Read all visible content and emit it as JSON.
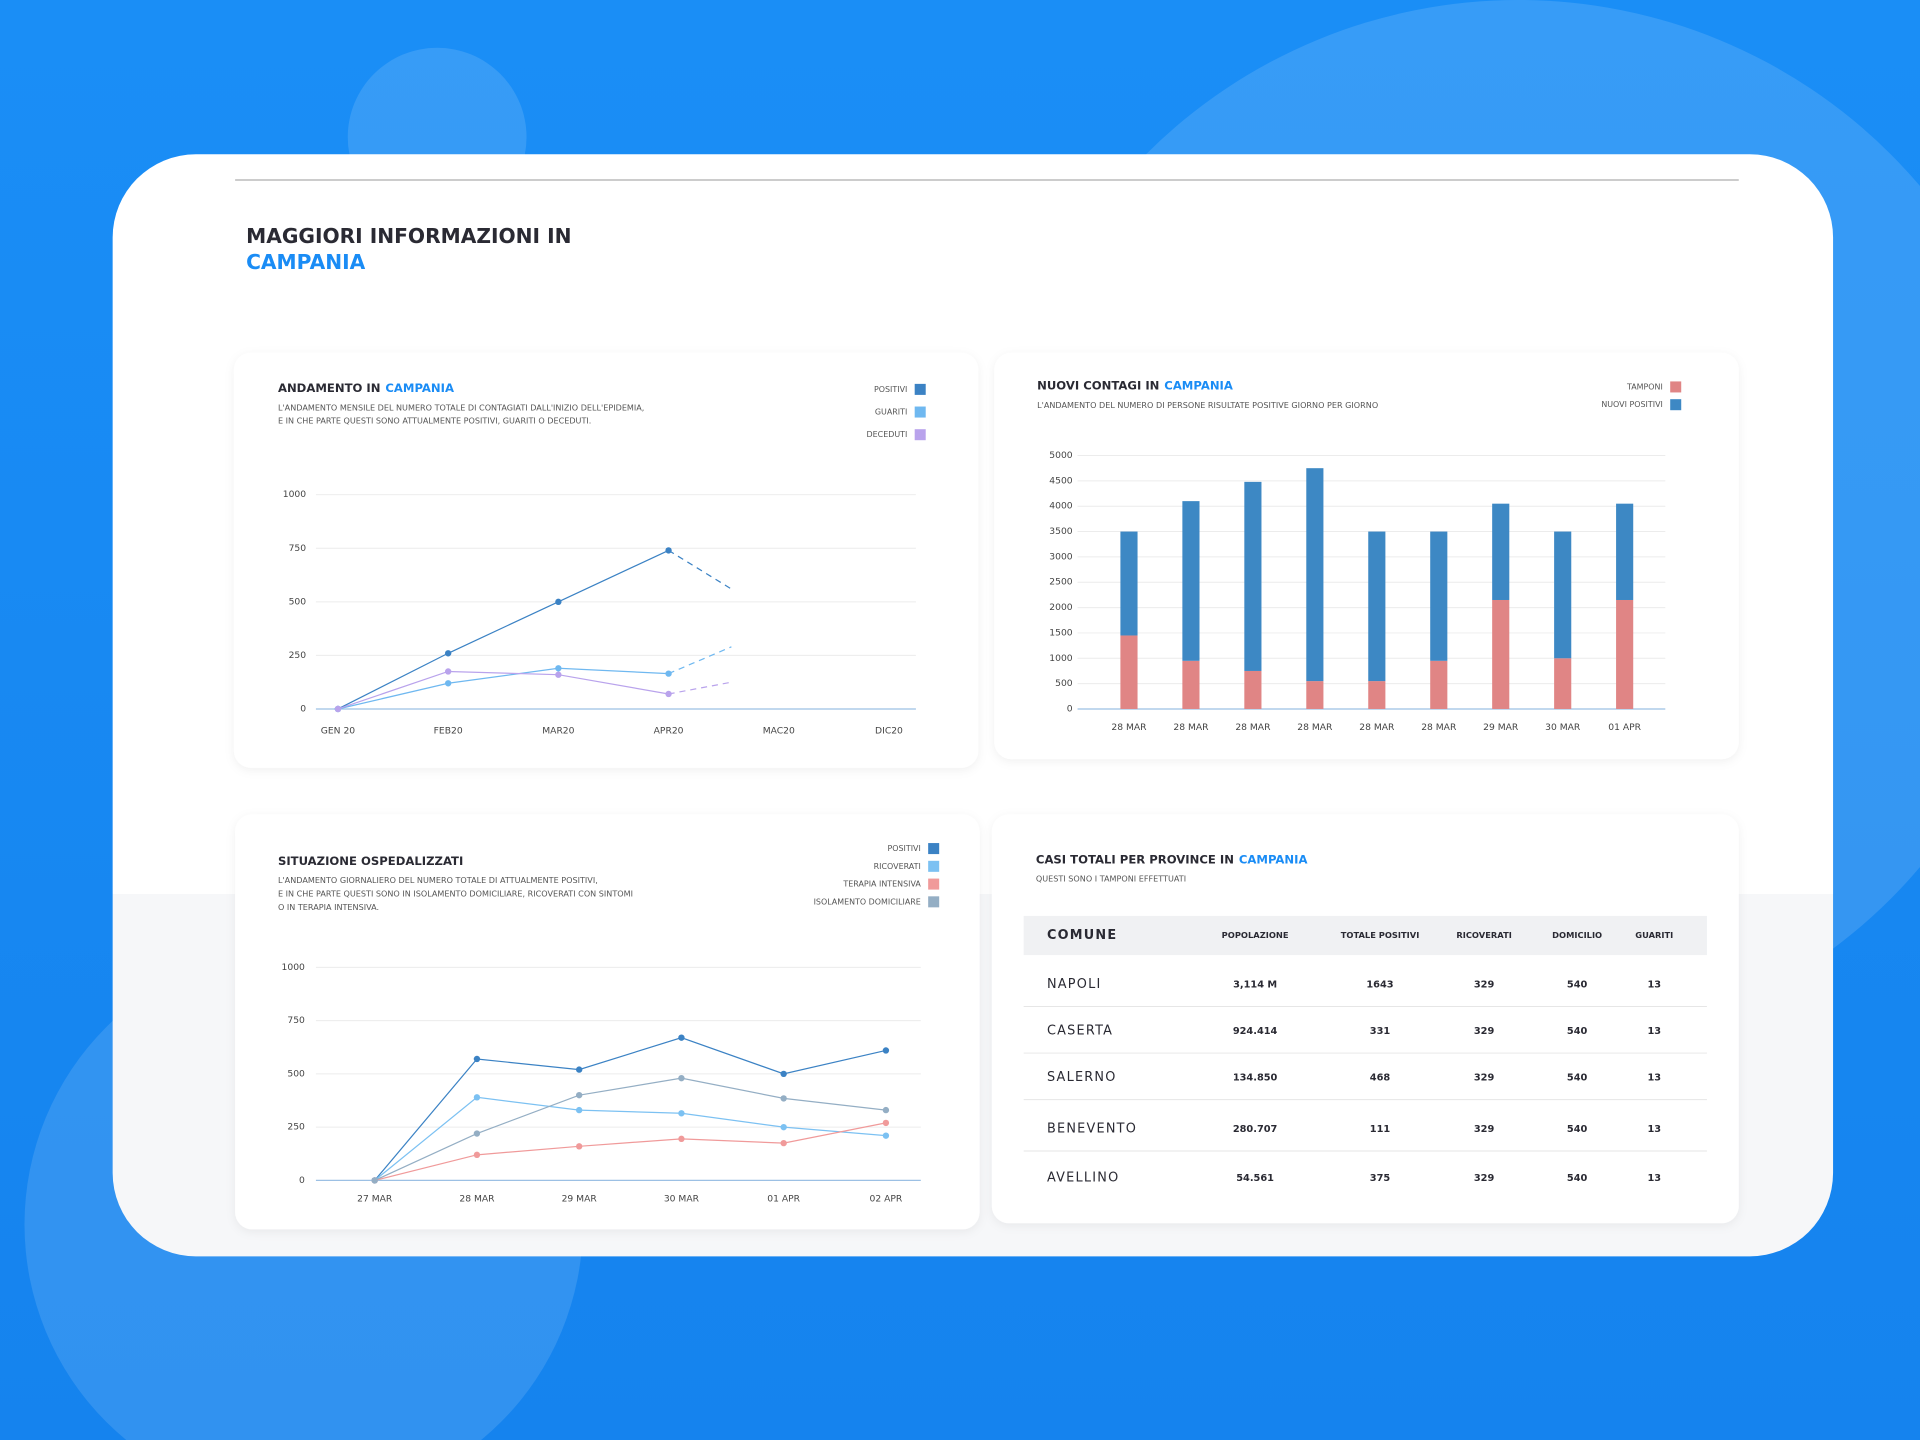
{
  "header": {
    "title": "MAGGIORI INFORMAZIONI IN",
    "highlight": "CAMPANIA"
  },
  "chart_data": [
    {
      "type": "line",
      "title": "ANDAMENTO IN",
      "title_highlight": "CAMPANIA",
      "subtitle": [
        "L'ANDAMENTO MENSILE DEL NUMERO TOTALE DI CONTAGIATI DALL'INIZIO DELL'EPIDEMIA,",
        "E IN CHE PARTE QUESTI SONO ATTUALMENTE POSITIVI, GUARITI O DECEDUTI."
      ],
      "categories": [
        "GEN 20",
        "FEB20",
        "MAR20",
        "APR20",
        "MAC20",
        "DIC20"
      ],
      "series": [
        {
          "name": "POSITIVI",
          "color": "#3b82c4",
          "values": [
            0,
            260,
            500,
            740,
            null,
            null
          ],
          "projection": 560
        },
        {
          "name": "GUARITI",
          "color": "#6fb8f0",
          "values": [
            0,
            120,
            190,
            165,
            null,
            null
          ],
          "projection": 290
        },
        {
          "name": "DECEDUTI",
          "color": "#b9a3ec",
          "values": [
            0,
            175,
            160,
            70,
            null,
            null
          ],
          "projection": 125
        }
      ],
      "ylim": [
        0,
        1000
      ],
      "yticks": [
        0,
        250,
        500,
        750,
        1000
      ],
      "grid": true,
      "legend": "top-right"
    },
    {
      "type": "bar",
      "stacked": true,
      "title": "NUOVI CONTAGI IN",
      "title_highlight": "CAMPANIA",
      "subtitle": [
        "L'ANDAMENTO DEL NUMERO DI PERSONE RISULTATE POSITIVE GIORNO PER GIORNO"
      ],
      "categories": [
        "28 MAR",
        "28 MAR",
        "28 MAR",
        "28 MAR",
        "28 MAR",
        "28 MAR",
        "29 MAR",
        "30 MAR",
        "01 APR"
      ],
      "series": [
        {
          "name": "TAMPONI",
          "color": "#e08585",
          "values": [
            1450,
            950,
            750,
            550,
            550,
            950,
            2150,
            1000,
            2150
          ]
        },
        {
          "name": "NUOVI POSITIVI",
          "color": "#3d88c4",
          "values": [
            2050,
            3150,
            3730,
            4200,
            2950,
            2550,
            1900,
            2500,
            1900
          ]
        }
      ],
      "ylim": [
        0,
        5000
      ],
      "yticks": [
        0,
        500,
        1000,
        1500,
        2000,
        2500,
        3000,
        3500,
        4000,
        4500,
        5000
      ],
      "grid": true,
      "legend": "top-right"
    },
    {
      "type": "line",
      "title": "SITUAZIONE OSPEDALIZZATI",
      "subtitle": [
        "L'ANDAMENTO GIORNALIERO DEL NUMERO TOTALE DI ATTUALMENTE POSITIVI,",
        "E IN CHE PARTE QUESTI SONO IN ISOLAMENTO DOMICILIARE, RICOVERATI CON SINTOMI",
        "O IN TERAPIA INTENSIVA."
      ],
      "categories": [
        "27 MAR",
        "28 MAR",
        "29 MAR",
        "30 MAR",
        "01 APR",
        "02 APR"
      ],
      "series": [
        {
          "name": "POSITIVI",
          "color": "#3b82c4",
          "values": [
            0,
            570,
            520,
            670,
            500,
            610
          ]
        },
        {
          "name": "RICOVERATI",
          "color": "#7cc1f2",
          "values": [
            0,
            390,
            330,
            315,
            250,
            210
          ]
        },
        {
          "name": "TERAPIA INTENSIVA",
          "color": "#f09a9a",
          "values": [
            0,
            120,
            160,
            195,
            175,
            270
          ]
        },
        {
          "name": "ISOLAMENTO DOMICILIARE",
          "color": "#94aec4",
          "values": [
            0,
            220,
            400,
            480,
            385,
            330
          ]
        }
      ],
      "ylim": [
        0,
        1000
      ],
      "yticks": [
        0,
        250,
        500,
        750,
        1000
      ],
      "grid": true,
      "legend": "top-right"
    }
  ],
  "table": {
    "title": "CASI TOTALI PER PROVINCE IN",
    "title_highlight": "CAMPANIA",
    "subtitle": "QUESTI SONO I TAMPONI EFFETTUATI",
    "columns": [
      "COMUNE",
      "POPOLAZIONE",
      "TOTALE POSITIVI",
      "RICOVERATI",
      "DOMICILIO",
      "GUARITI"
    ],
    "rows": [
      [
        "NAPOLI",
        "3,114 M",
        1643,
        329,
        540,
        13
      ],
      [
        "CASERTA",
        "924.414",
        331,
        329,
        540,
        13
      ],
      [
        "SALERNO",
        "134.850",
        468,
        329,
        540,
        13
      ],
      [
        "BENEVENTO",
        "280.707",
        111,
        329,
        540,
        13
      ],
      [
        "AVELLINO",
        "54.561",
        375,
        329,
        540,
        13
      ]
    ]
  }
}
